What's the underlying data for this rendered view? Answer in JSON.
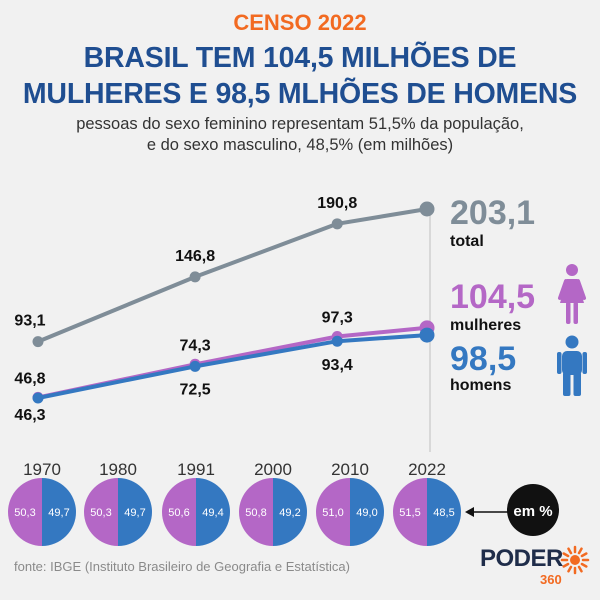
{
  "header": {
    "kicker": "CENSO 2022",
    "title_line1": "BRASIL TEM 104,5 MILHÕES DE",
    "title_line2": "MULHERES E 98,5 MLHÕES DE HOMENS",
    "subtitle_line1": "pessoas do sexo feminino representam 51,5% da população,",
    "subtitle_line2": "e do sexo masculino, 48,5% (em milhões)"
  },
  "colors": {
    "total": "#7f8d98",
    "women": "#b467c6",
    "men": "#3478c1",
    "dark": "#111111"
  },
  "chart_data": {
    "type": "line",
    "x": [
      "1970",
      "1980",
      "1991",
      "2000",
      "2010",
      "2022"
    ],
    "series": [
      {
        "name": "total",
        "values": [
          93.1,
          null,
          146.8,
          null,
          190.8,
          203.1
        ],
        "labels": [
          "93,1",
          "",
          "146,8",
          "",
          "190,8",
          "203,1"
        ]
      },
      {
        "name": "mulheres",
        "values": [
          46.8,
          null,
          74.3,
          null,
          97.3,
          104.5
        ],
        "labels": [
          "46,8",
          "",
          "74,3",
          "",
          "97,3",
          "104,5"
        ]
      },
      {
        "name": "homens",
        "values": [
          46.3,
          null,
          72.5,
          null,
          93.4,
          98.5
        ],
        "labels": [
          "46,3",
          "",
          "72,5",
          "",
          "93,4",
          "98,5"
        ]
      }
    ],
    "end_labels": {
      "total": {
        "value": "203,1",
        "label": "total"
      },
      "women": {
        "value": "104,5",
        "label": "mulheres"
      },
      "men": {
        "value": "98,5",
        "label": "homens"
      }
    }
  },
  "split_pies": {
    "unit_label": "em %",
    "items": [
      {
        "year": "1970",
        "women": "50,3",
        "men": "49,7",
        "women_pct": 50.3
      },
      {
        "year": "1980",
        "women": "50,3",
        "men": "49,7",
        "women_pct": 50.3
      },
      {
        "year": "1991",
        "women": "50,6",
        "men": "49,4",
        "women_pct": 50.6
      },
      {
        "year": "2000",
        "women": "50,8",
        "men": "49,2",
        "women_pct": 50.8
      },
      {
        "year": "2010",
        "women": "51,0",
        "men": "49,0",
        "women_pct": 51.0
      },
      {
        "year": "2022",
        "women": "51,5",
        "men": "48,5",
        "women_pct": 51.5
      }
    ]
  },
  "footer": {
    "source": "fonte: IBGE (Instituto Brasileiro de Geografia e Estatística)",
    "logo_text": "PODER",
    "logo_sub": "360"
  }
}
